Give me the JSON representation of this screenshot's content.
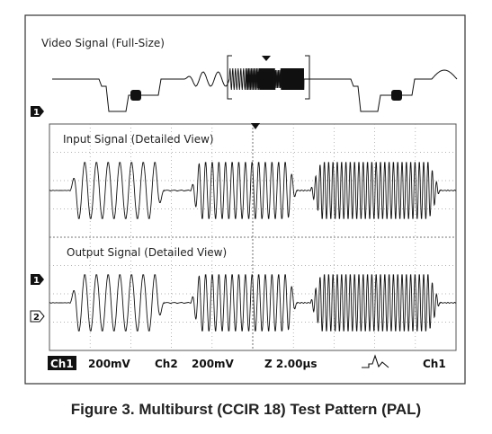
{
  "overview": {
    "title": "Video Signal (Full-Size)"
  },
  "input_panel": {
    "title": "Input Signal (Detailed View)"
  },
  "output_panel": {
    "title": "Output Signal (Detailed View)"
  },
  "markers": {
    "ch1_marker_top": "1",
    "ch1_marker_bottom": "1",
    "ch2_marker": "2"
  },
  "status_bar": {
    "ch1_label": "Ch1",
    "ch1_scale": "200mV",
    "ch2_label": "Ch2",
    "ch2_scale": "200mV",
    "timebase": "Z 2.00µs",
    "trigger_source": "Ch1",
    "trigger_icon": "trigger-edge-icon"
  },
  "caption": "Figure 3. Multiburst (CCIR 18) Test Pattern (PAL)",
  "colors": {
    "trace": "#111111",
    "grid": "#9a9a9a",
    "frame": "#333333",
    "inverse_bg": "#111111"
  }
}
